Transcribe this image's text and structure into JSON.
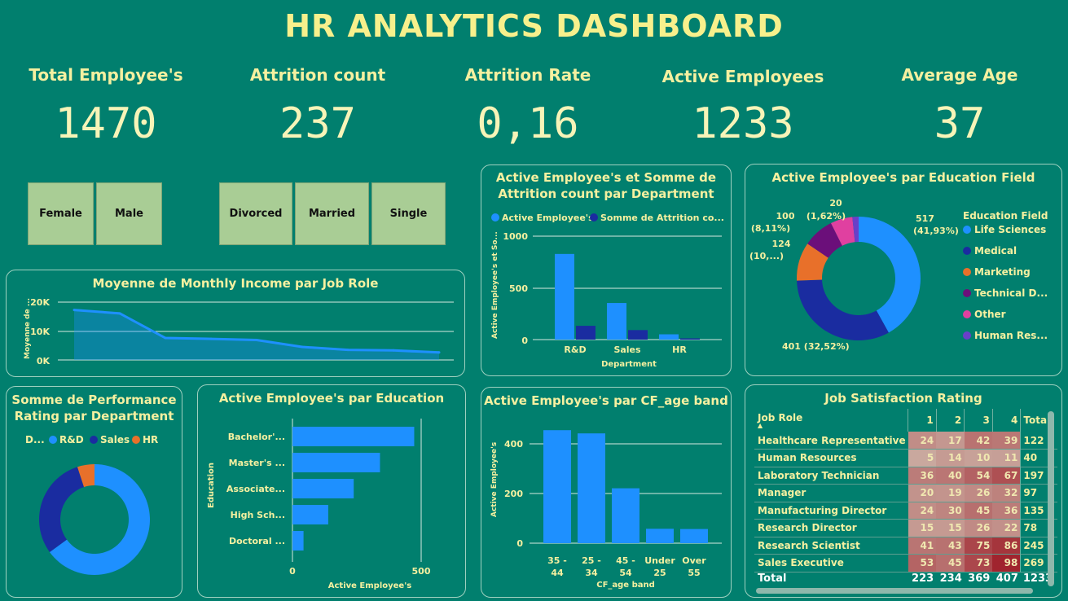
{
  "title": "HR ANALYTICS DASHBOARD",
  "kpis": [
    {
      "label": "Total Employee's",
      "value": "1470"
    },
    {
      "label": "Attrition count",
      "value": "237"
    },
    {
      "label": "Attrition Rate",
      "value": "0,16"
    },
    {
      "label": "Active Employees",
      "value": "1233"
    },
    {
      "label": "Average Age",
      "value": "37"
    }
  ],
  "slicers": {
    "gender": [
      "Female",
      "Male"
    ],
    "marital": [
      "Divorced",
      "Married",
      "Single"
    ]
  },
  "colors": {
    "background": "#017F6E",
    "blue": "#1E90FF",
    "navy": "#1A2CA0",
    "orange": "#E8702A",
    "purple": "#6B0F7A",
    "pink": "#E040A0",
    "violet": "#6A3FC8",
    "slicer": "#A9CD95"
  },
  "chart_data": [
    {
      "id": "income",
      "type": "area",
      "title": "Moyenne de Monthly Income par Job Role",
      "ylabel": "Moyenne de ...",
      "yticks": [
        "20K",
        "10K",
        "0K"
      ],
      "ylim": [
        0,
        20000
      ],
      "values": [
        17300,
        16100,
        7600,
        7300,
        6900,
        4500,
        3500,
        3300,
        2600
      ]
    },
    {
      "id": "dept",
      "type": "bar",
      "title": "Active Employee's et Somme de Attrition count par Department",
      "legend": [
        "Active Employee's",
        "Somme de Attrition co..."
      ],
      "xlabel": "Department",
      "ylabel": "Active Employee's et So...",
      "categories": [
        "R&D",
        "Sales",
        "HR"
      ],
      "yticks": [
        "1000",
        "500",
        "0"
      ],
      "ylim": [
        0,
        1000
      ],
      "series": [
        {
          "name": "Active Employee's",
          "values": [
            828,
            354,
            51
          ]
        },
        {
          "name": "Somme de Attrition co...",
          "values": [
            133,
            92,
            12
          ]
        }
      ]
    },
    {
      "id": "edufield",
      "type": "pie",
      "title": "Active Employee's par Education Field",
      "legend_title": "Education Field",
      "categories": [
        "Life Sciences",
        "Medical",
        "Marketing",
        "Technical D...",
        "Other",
        "Human Res..."
      ],
      "values": [
        517,
        401,
        124,
        100,
        71,
        20
      ],
      "labels": [
        {
          "l1": "517",
          "l2": "(41,93%)"
        },
        {
          "l1": "401 (32,52%)",
          "l2": ""
        },
        {
          "l1": "124",
          "l2": "(10,...)"
        },
        {
          "l1": "100",
          "l2": "(8,11%)"
        },
        {
          "l1": "20",
          "l2": "(1,62%)"
        }
      ]
    },
    {
      "id": "perf",
      "type": "pie",
      "title": "Somme de Performance Rating par Department",
      "legend_title": "D...",
      "categories": [
        "R&D",
        "Sales",
        "HR"
      ],
      "values": [
        65,
        30,
        5
      ]
    },
    {
      "id": "education",
      "type": "bar",
      "title": "Active Employee's par Education",
      "xlabel": "Active Employee's",
      "ylabel": "Education",
      "categories": [
        "Bachelor'...",
        "Master's ...",
        "Associate...",
        "High Sch...",
        "Doctoral ..."
      ],
      "values": [
        473,
        340,
        238,
        139,
        43
      ],
      "xticks": [
        "0",
        "500"
      ],
      "xlim": [
        0,
        500
      ]
    },
    {
      "id": "ageband",
      "type": "bar",
      "title": "Active Employee's par CF_age band",
      "xlabel": "CF_age band",
      "ylabel": "Active Employee's",
      "categories": [
        [
          "35 -",
          "44"
        ],
        [
          "25 -",
          "34"
        ],
        [
          "45 -",
          "54"
        ],
        [
          "Under",
          "25"
        ],
        [
          "Over",
          "55"
        ]
      ],
      "values": [
        455,
        442,
        221,
        58,
        57
      ],
      "yticks": [
        "400",
        "200",
        "0"
      ],
      "ylim": [
        0,
        500
      ]
    },
    {
      "id": "jobsat",
      "type": "table",
      "title": "Job Satisfaction Rating",
      "columns": [
        "Job Role",
        "1",
        "2",
        "3",
        "4",
        "Total"
      ],
      "rows": [
        [
          "Healthcare Representative",
          "24",
          "17",
          "42",
          "39",
          "122"
        ],
        [
          "Human Resources",
          "5",
          "14",
          "10",
          "11",
          "40"
        ],
        [
          "Laboratory Technician",
          "36",
          "40",
          "54",
          "67",
          "197"
        ],
        [
          "Manager",
          "20",
          "19",
          "26",
          "32",
          "97"
        ],
        [
          "Manufacturing Director",
          "24",
          "30",
          "45",
          "36",
          "135"
        ],
        [
          "Research Director",
          "15",
          "15",
          "26",
          "22",
          "78"
        ],
        [
          "Research Scientist",
          "41",
          "43",
          "75",
          "86",
          "245"
        ],
        [
          "Sales Executive",
          "53",
          "45",
          "73",
          "98",
          "269"
        ]
      ],
      "total": [
        "Total",
        "223",
        "234",
        "369",
        "407",
        "1233"
      ]
    }
  ]
}
